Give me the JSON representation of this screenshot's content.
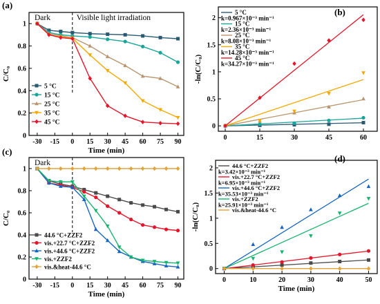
{
  "chart_data": [
    {
      "panel": "(a)",
      "type": "line",
      "xlabel": "Time (min)",
      "ylabel": "C/C₀",
      "xlim": [
        -37,
        95
      ],
      "ylim": [
        0.0,
        1.1
      ],
      "xticks": [
        -30,
        -15,
        0,
        15,
        30,
        45,
        60,
        75,
        90
      ],
      "yticks": [
        0.0,
        0.2,
        0.4,
        0.6,
        0.8,
        1.0
      ],
      "annotations": [
        "Dark",
        "Visible light irradiation"
      ],
      "divider_x": 0,
      "legend_position": "bottom-left",
      "x": [
        -30,
        -20,
        -10,
        0,
        15,
        30,
        45,
        60,
        75,
        90
      ],
      "series": [
        {
          "name": "5 °C",
          "color": "#2a5a73",
          "marker": "square",
          "values": [
            1.0,
            0.94,
            0.93,
            0.92,
            0.91,
            0.905,
            0.9,
            0.89,
            0.875,
            0.865
          ]
        },
        {
          "name": "15 °C",
          "color": "#1aa59a",
          "marker": "circle",
          "values": [
            1.0,
            0.92,
            0.9,
            0.89,
            0.88,
            0.86,
            0.84,
            0.795,
            0.74,
            0.655
          ]
        },
        {
          "name": "25 °C",
          "color": "#b8956e",
          "marker": "triangle",
          "values": [
            1.0,
            0.91,
            0.89,
            0.875,
            0.8,
            0.705,
            0.625,
            0.53,
            0.51,
            0.435
          ]
        },
        {
          "name": "35 °C",
          "color": "#f2a900",
          "marker": "triangle-down",
          "values": [
            1.0,
            0.9,
            0.88,
            0.87,
            0.72,
            0.58,
            0.47,
            0.31,
            0.23,
            0.16
          ]
        },
        {
          "name": "45 °C",
          "color": "#e3162b",
          "marker": "diamond",
          "values": [
            1.0,
            0.9,
            0.875,
            0.865,
            0.51,
            0.265,
            0.175,
            0.12,
            0.11,
            0.105
          ]
        }
      ]
    },
    {
      "panel": "(b)",
      "type": "scatter",
      "xlabel": "",
      "ylabel": "-ln(C/C₀)",
      "xlim": [
        -3,
        66
      ],
      "ylim": [
        -0.1,
        2.2
      ],
      "xticks": [
        0,
        15,
        30,
        45,
        60
      ],
      "yticks": [
        0.0,
        0.5,
        1.0,
        1.5,
        2.0
      ],
      "legend_position": "top-left",
      "x": [
        0,
        15,
        30,
        45,
        60
      ],
      "series": [
        {
          "name": "5 °C",
          "k": "k=0.967×10⁻³ min⁻¹",
          "color": "#2a5a73",
          "marker": "square",
          "values": [
            0.0,
            0.01,
            0.02,
            0.03,
            0.06
          ],
          "fit": [
            0.0,
            0.058
          ]
        },
        {
          "name": "15 °C",
          "k": "k=2.36×10⁻³ min⁻¹",
          "color": "#1aa59a",
          "marker": "circle",
          "values": [
            0.0,
            0.03,
            0.05,
            0.1,
            0.15
          ],
          "fit": [
            0.0,
            0.142
          ]
        },
        {
          "name": "25 °C",
          "k": "k=8.08×10⁻³ min⁻¹",
          "color": "#b8956e",
          "marker": "triangle",
          "values": [
            0.0,
            0.09,
            0.24,
            0.35,
            0.5
          ],
          "fit": [
            0.0,
            0.485
          ]
        },
        {
          "name": "35 °C",
          "k": "k=14.28×10⁻³ min⁻¹",
          "color": "#f2a900",
          "marker": "triangle-down",
          "values": [
            0.0,
            0.1,
            0.27,
            0.6,
            0.98
          ],
          "fit": [
            0.0,
            0.857
          ]
        },
        {
          "name": "45 °C",
          "k": "k=34.27×10⁻³ min⁻¹",
          "color": "#e3162b",
          "marker": "diamond",
          "values": [
            0.0,
            0.52,
            1.15,
            1.58,
            1.96
          ],
          "fit": [
            0.0,
            2.056
          ]
        }
      ]
    },
    {
      "panel": "(c)",
      "type": "line",
      "xlabel": "Time (min)",
      "ylabel": "C/C₀",
      "xlim": [
        -37,
        95
      ],
      "ylim": [
        0.0,
        1.1
      ],
      "xticks": [
        -30,
        -15,
        0,
        15,
        30,
        45,
        60,
        75,
        90
      ],
      "yticks": [
        0.0,
        0.2,
        0.4,
        0.6,
        0.8,
        1.0
      ],
      "annotations": [
        "Dark"
      ],
      "divider_x": 0,
      "legend_position": "bottom-left",
      "x": [
        -30,
        -20,
        -10,
        0,
        10,
        20,
        30,
        40,
        50,
        60,
        70,
        80,
        90
      ],
      "series": [
        {
          "name": "44.6 °C+ZZF2",
          "color": "#4a4a4a",
          "marker": "square",
          "values": [
            1.0,
            0.89,
            0.86,
            0.84,
            0.81,
            0.78,
            0.75,
            0.72,
            0.69,
            0.67,
            0.655,
            0.63,
            0.61
          ]
        },
        {
          "name": "vis.+22.7 °C+ZZF2",
          "color": "#e3162b",
          "marker": "circle",
          "values": [
            1.0,
            0.87,
            0.85,
            0.83,
            0.79,
            0.74,
            0.66,
            0.6,
            0.54,
            0.49,
            0.47,
            0.45,
            0.44
          ]
        },
        {
          "name": "vis.+44.6 °C+ZZF2",
          "color": "#1565c0",
          "marker": "triangle",
          "values": [
            1.0,
            0.87,
            0.84,
            0.83,
            0.72,
            0.45,
            0.35,
            0.25,
            0.2,
            0.16,
            0.14,
            0.12,
            0.11
          ]
        },
        {
          "name": "vis.+ZZF2",
          "color": "#16b36e",
          "marker": "triangle-down",
          "values": [
            1.0,
            0.89,
            0.88,
            0.88,
            0.75,
            0.62,
            0.48,
            0.29,
            0.2,
            0.17,
            0.16,
            0.15,
            0.145
          ]
        },
        {
          "name": "vis.&heat-44.6 °C",
          "color": "#e2a33a",
          "marker": "diamond",
          "values": [
            1.0,
            1.0,
            1.0,
            1.0,
            1.0,
            1.0,
            1.0,
            1.0,
            1.0,
            1.0,
            1.0,
            1.0,
            1.0
          ]
        }
      ]
    },
    {
      "panel": "(d)",
      "type": "scatter",
      "xlabel": "Time (min)",
      "ylabel": "-ln(C/C₀)",
      "xlim": [
        -3,
        53
      ],
      "ylim": [
        -0.1,
        2.15
      ],
      "xticks": [
        0,
        10,
        20,
        30,
        40,
        50
      ],
      "yticks": [
        0.0,
        0.5,
        1.0,
        1.5,
        2.0
      ],
      "legend_position": "top-left",
      "x": [
        0,
        10,
        20,
        30,
        40,
        50
      ],
      "series": [
        {
          "name": "44.6 °C+ZZF2",
          "k": "k=3.42×10⁻³ min⁻¹",
          "color": "#4a4a4a",
          "marker": "square",
          "values": [
            0.0,
            0.04,
            0.07,
            0.11,
            0.14,
            0.17
          ],
          "fit": [
            0.0,
            0.171
          ]
        },
        {
          "name": "vis.+22.7 °C+ZZF2",
          "k": "k=6.95×10⁻³ min⁻¹",
          "color": "#e3162b",
          "marker": "circle",
          "values": [
            0.0,
            0.07,
            0.13,
            0.21,
            0.28,
            0.35
          ],
          "fit": [
            0.0,
            0.348
          ]
        },
        {
          "name": "vis.+44.6 °C+ZZF2",
          "k": "k=35.53×10⁻³ min⁻¹",
          "color": "#1565c0",
          "marker": "triangle",
          "values": [
            0.0,
            0.48,
            0.82,
            1.17,
            1.45,
            1.63
          ],
          "fit": [
            0.0,
            1.777
          ]
        },
        {
          "name": "vis.+ZZF2",
          "k": "k=25.91×10⁻³ min⁻¹",
          "color": "#16b36e",
          "marker": "triangle-down",
          "values": [
            0.0,
            0.2,
            0.33,
            0.65,
            1.1,
            1.39
          ],
          "fit": [
            0.0,
            1.296
          ]
        },
        {
          "name": "vis.&heat-44.6 °C",
          "k": "",
          "color": "#e2a33a",
          "marker": "diamond",
          "values": [
            0.0,
            0.0,
            0.0,
            0.0,
            0.0,
            0.0
          ],
          "fit": [
            0.0,
            0.0
          ]
        }
      ]
    }
  ]
}
